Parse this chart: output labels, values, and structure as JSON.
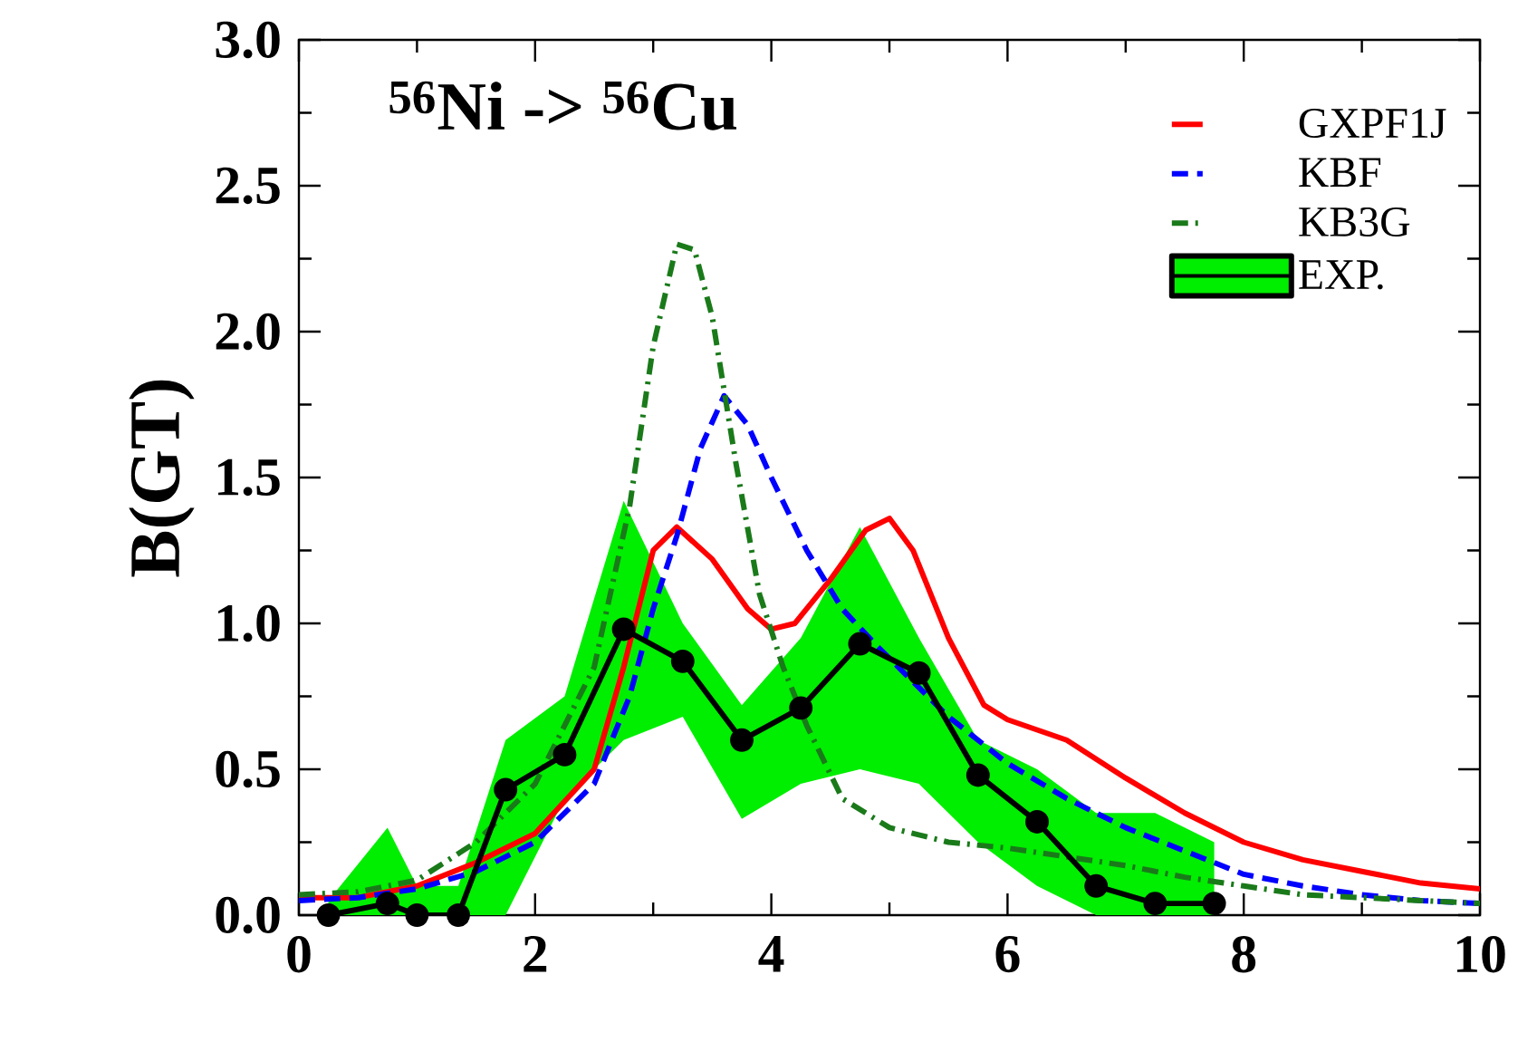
{
  "chart_data": {
    "type": "line",
    "ylabel": "B(GT)",
    "annotations": [
      "$^{56}$Ni -> $^{56}$Cu"
    ],
    "xlim": [
      0,
      10
    ],
    "xticks": [
      0,
      2,
      4,
      6,
      8,
      10
    ],
    "ylim": [
      0,
      3
    ],
    "yticks": [
      {
        "value": 0,
        "label": "0.0"
      },
      {
        "value": 0.5,
        "label": "0.5"
      },
      {
        "value": 1,
        "label": "1.0"
      },
      {
        "value": 1.5,
        "label": "1.5"
      },
      {
        "value": 2,
        "label": "2.0"
      },
      {
        "value": 2.5,
        "label": "2.5"
      },
      {
        "value": 3,
        "label": "3.0"
      }
    ],
    "legend": "top right",
    "series": [
      {
        "name": "GXPF1J",
        "color": "#ff0000",
        "line_style": "solid",
        "marker": "none",
        "x": [
          0,
          0.5,
          1,
          1.5,
          2,
          2.5,
          2.75,
          3.0,
          3.2,
          3.5,
          3.8,
          4.0,
          4.2,
          4.5,
          4.8,
          5.0,
          5.2,
          5.5,
          5.8,
          6.0,
          6.5,
          7.0,
          7.5,
          8.0,
          8.5,
          9.0,
          9.5,
          10
        ],
        "values": [
          0.06,
          0.06,
          0.1,
          0.18,
          0.28,
          0.5,
          0.85,
          1.25,
          1.33,
          1.22,
          1.05,
          0.98,
          1.0,
          1.15,
          1.32,
          1.36,
          1.25,
          0.95,
          0.72,
          0.67,
          0.6,
          0.47,
          0.35,
          0.25,
          0.19,
          0.15,
          0.11,
          0.09
        ]
      },
      {
        "name": "KBF",
        "color": "#0000ff",
        "line_style": "dashed",
        "marker": "none",
        "x": [
          0,
          0.5,
          1,
          1.5,
          2,
          2.5,
          2.8,
          3.0,
          3.2,
          3.4,
          3.6,
          3.8,
          4.0,
          4.3,
          4.6,
          4.9,
          5.2,
          5.5,
          6.0,
          6.5,
          7.0,
          7.5,
          8.0,
          8.5,
          9.0,
          9.5,
          10
        ],
        "values": [
          0.05,
          0.06,
          0.09,
          0.15,
          0.25,
          0.45,
          0.75,
          1.05,
          1.3,
          1.6,
          1.78,
          1.68,
          1.5,
          1.25,
          1.05,
          0.92,
          0.8,
          0.68,
          0.52,
          0.4,
          0.3,
          0.22,
          0.14,
          0.1,
          0.07,
          0.05,
          0.04
        ]
      },
      {
        "name": "KB3G",
        "color": "#1a7a1a",
        "line_style": "dashdot",
        "marker": "none",
        "x": [
          0,
          0.5,
          1,
          1.5,
          2,
          2.5,
          2.8,
          3.0,
          3.2,
          3.35,
          3.5,
          3.7,
          3.9,
          4.1,
          4.3,
          4.6,
          5.0,
          5.5,
          6.0,
          6.5,
          7.0,
          7.5,
          8.0,
          8.5,
          9.0,
          9.5,
          10
        ],
        "values": [
          0.07,
          0.08,
          0.12,
          0.25,
          0.45,
          0.85,
          1.4,
          1.95,
          2.3,
          2.28,
          2.05,
          1.55,
          1.1,
          0.85,
          0.65,
          0.4,
          0.3,
          0.25,
          0.23,
          0.2,
          0.17,
          0.13,
          0.1,
          0.07,
          0.06,
          0.05,
          0.04
        ]
      },
      {
        "name": "EXP.",
        "color": "#000000",
        "line_style": "solid",
        "marker": "circle",
        "x": [
          0.25,
          0.75,
          1.0,
          1.35,
          1.75,
          2.25,
          2.75,
          3.25,
          3.75,
          4.25,
          4.75,
          5.25,
          5.75,
          6.25,
          6.75,
          7.25,
          7.75
        ],
        "values": [
          0.0,
          0.04,
          0.0,
          0.0,
          0.43,
          0.55,
          0.98,
          0.87,
          0.6,
          0.71,
          0.93,
          0.83,
          0.48,
          0.32,
          0.1,
          0.04,
          0.04
        ],
        "lower": [
          0,
          0,
          0,
          0,
          0,
          0.4,
          0.6,
          0.68,
          0.33,
          0.45,
          0.5,
          0.45,
          0.25,
          0.1,
          0,
          0,
          0
        ],
        "upper": [
          0.05,
          0.3,
          0.1,
          0.1,
          0.6,
          0.75,
          1.42,
          1.0,
          0.72,
          0.95,
          1.33,
          0.95,
          0.6,
          0.5,
          0.35,
          0.35,
          0.25
        ]
      }
    ]
  }
}
